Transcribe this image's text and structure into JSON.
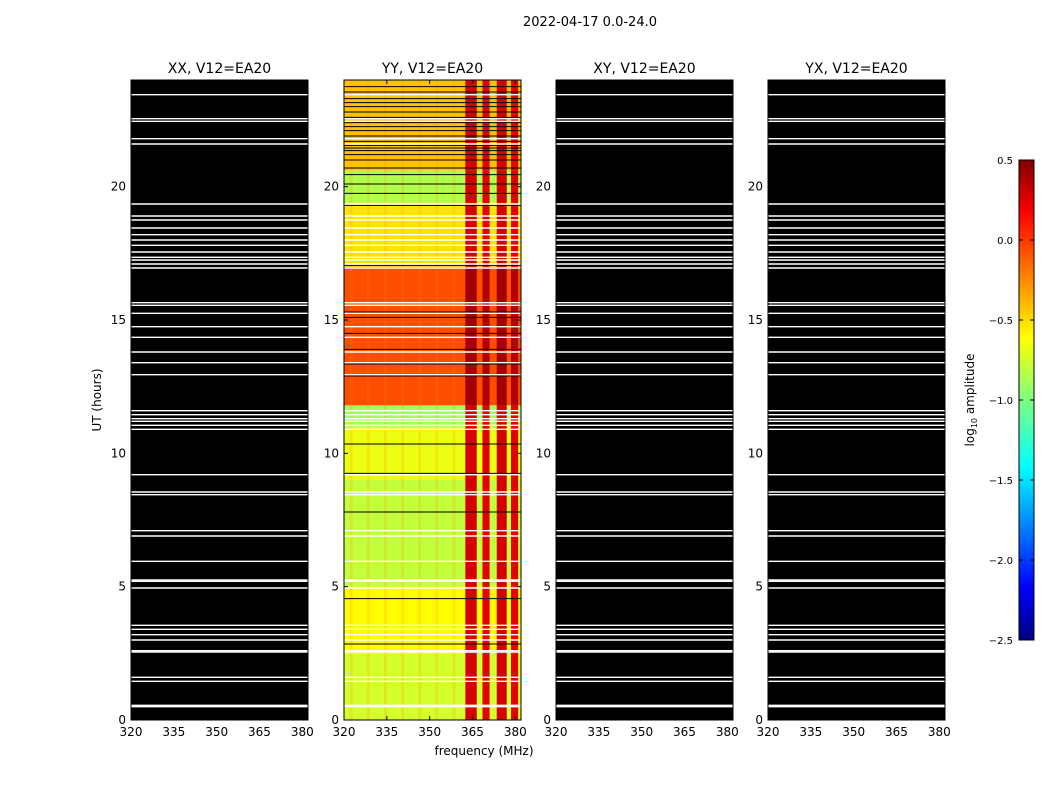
{
  "chart_data": {
    "type": "heatmap",
    "title": "2022-04-17 0.0-24.0",
    "xlabel": "frequency (MHz)",
    "ylabel": "UT (hours)",
    "colorbar_label": "log10 amplitude",
    "xlim": [
      320,
      382
    ],
    "ylim": [
      0,
      24
    ],
    "x_ticks": [
      320,
      335,
      350,
      365,
      380
    ],
    "y_ticks": [
      0,
      5,
      10,
      15,
      20
    ],
    "colorbar": {
      "min": -2.5,
      "max": 0.5,
      "ticks": [
        "0.5",
        "0.0",
        "−0.5",
        "−1.0",
        "−1.5",
        "−2.0",
        "−2.5"
      ],
      "tick_values": [
        0.5,
        0.0,
        -0.5,
        -1.0,
        -1.5,
        -2.0,
        -2.5
      ],
      "colormap": "jet"
    },
    "panels": [
      {
        "title": "XX, V12=EA20",
        "fill": "black"
      },
      {
        "title": "YY, V12=EA20",
        "fill": "data"
      },
      {
        "title": "XY, V12=EA20",
        "fill": "black"
      },
      {
        "title": "YX, V12=EA20",
        "fill": "black"
      }
    ],
    "gap_hours": [
      0.5,
      0.55,
      1.45,
      1.6,
      2.55,
      2.6,
      3.0,
      3.2,
      3.4,
      3.55,
      4.95,
      5.2,
      5.25,
      5.95,
      6.9,
      7.1,
      8.45,
      8.55,
      9.2,
      10.9,
      11.05,
      11.2,
      11.3,
      11.45,
      11.6,
      12.95,
      13.4,
      13.8,
      14.35,
      14.75,
      15.25,
      15.55,
      15.65,
      16.95,
      17.1,
      17.25,
      17.35,
      17.55,
      17.8,
      18.0,
      18.2,
      18.45,
      18.75,
      18.9,
      19.35,
      21.6,
      21.8,
      22.45,
      22.55,
      23.45
    ],
    "yy_black_rows": [
      2.85,
      4.55,
      7.8,
      9.25,
      10.35,
      12.9,
      13.35,
      13.9,
      14.5,
      15.1,
      15.3,
      17.05,
      18.45,
      19.3,
      19.75,
      20.1,
      20.45,
      20.7,
      21.0,
      21.2,
      21.35,
      21.45,
      21.55,
      21.7,
      21.9,
      22.1,
      22.25,
      22.4,
      22.6,
      22.8,
      23.0,
      23.15,
      23.3,
      23.55,
      23.75
    ],
    "yy_time_profile": [
      {
        "from": 0.0,
        "to": 2.5,
        "level": -0.75
      },
      {
        "from": 2.5,
        "to": 5.0,
        "level": -0.62
      },
      {
        "from": 5.0,
        "to": 9.0,
        "level": -0.8
      },
      {
        "from": 9.0,
        "to": 11.0,
        "level": -0.68
      },
      {
        "from": 11.0,
        "to": 11.8,
        "level": -0.9
      },
      {
        "from": 11.8,
        "to": 17.0,
        "level": -0.1
      },
      {
        "from": 17.0,
        "to": 19.4,
        "level": -0.55
      },
      {
        "from": 19.4,
        "to": 20.6,
        "level": -0.85
      },
      {
        "from": 20.6,
        "to": 24.0,
        "level": -0.45
      }
    ],
    "yy_hot_channels_mhz": [
      [
        362.5,
        366.5
      ],
      [
        368.5,
        371.0
      ],
      [
        373.5,
        377.0
      ],
      [
        378.5,
        381.0
      ]
    ],
    "yy_hot_level": 0.25
  }
}
